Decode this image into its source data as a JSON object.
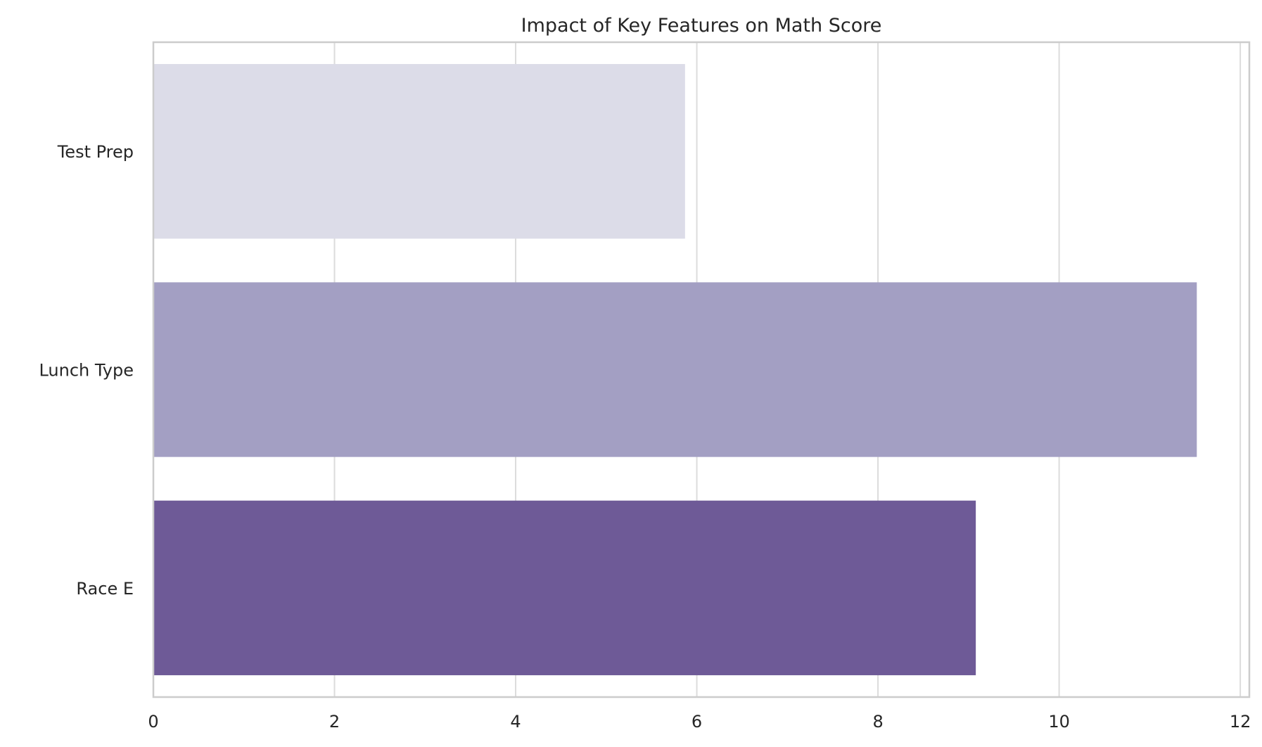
{
  "chart_data": {
    "type": "bar",
    "orientation": "horizontal",
    "title": "Impact of Key Features on Math Score",
    "xlabel": "",
    "ylabel": "",
    "categories": [
      "Test Prep",
      "Lunch Type",
      "Race E"
    ],
    "values": [
      5.87,
      11.52,
      9.08
    ],
    "colors": [
      "#dcdce8",
      "#a39fc3",
      "#6e5a97"
    ],
    "xlim": [
      0,
      12.1
    ],
    "xticks": [
      0,
      2,
      4,
      6,
      8,
      10,
      12
    ],
    "grid": true,
    "legend": "none"
  }
}
